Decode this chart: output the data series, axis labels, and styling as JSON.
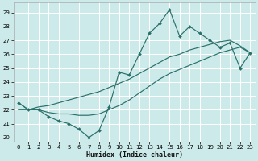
{
  "xlabel": "Humidex (Indice chaleur)",
  "bg_color": "#cdeaea",
  "line_color": "#2a706a",
  "grid_color": "#ffffff",
  "xlim": [
    -0.5,
    23.5
  ],
  "ylim": [
    19.7,
    29.7
  ],
  "xticks": [
    0,
    1,
    2,
    3,
    4,
    5,
    6,
    7,
    8,
    9,
    10,
    11,
    12,
    13,
    14,
    15,
    16,
    17,
    18,
    19,
    20,
    21,
    22,
    23
  ],
  "yticks": [
    20,
    21,
    22,
    23,
    24,
    25,
    26,
    27,
    28,
    29
  ],
  "curve_zigzag_x": [
    0,
    1,
    2,
    3,
    4,
    5,
    6,
    7,
    8,
    9,
    10,
    11,
    12,
    13,
    14,
    15,
    16,
    17,
    18,
    19,
    20,
    21,
    22,
    23
  ],
  "curve_zigzag_y": [
    22.5,
    22.0,
    22.0,
    21.5,
    21.2,
    21.0,
    20.6,
    20.0,
    20.5,
    22.2,
    24.7,
    24.5,
    26.0,
    27.5,
    28.2,
    29.2,
    27.3,
    28.0,
    27.5,
    27.0,
    26.5,
    26.8,
    25.0,
    26.1
  ],
  "curve_upper_x": [
    0,
    1,
    2,
    3,
    4,
    5,
    6,
    7,
    8,
    9,
    10,
    11,
    12,
    13,
    14,
    15,
    16,
    17,
    18,
    19,
    20,
    21,
    22,
    23
  ],
  "curve_upper_y": [
    22.5,
    22.0,
    22.2,
    22.3,
    22.5,
    22.7,
    22.9,
    23.1,
    23.3,
    23.6,
    23.9,
    24.2,
    24.6,
    25.0,
    25.4,
    25.8,
    26.0,
    26.3,
    26.5,
    26.7,
    26.9,
    27.0,
    26.6,
    26.1
  ],
  "curve_lower_x": [
    0,
    1,
    2,
    3,
    4,
    5,
    6,
    7,
    8,
    9,
    10,
    11,
    12,
    13,
    14,
    15,
    16,
    17,
    18,
    19,
    20,
    21,
    22,
    23
  ],
  "curve_lower_y": [
    22.0,
    22.0,
    22.0,
    21.8,
    21.7,
    21.7,
    21.6,
    21.6,
    21.7,
    22.0,
    22.3,
    22.7,
    23.2,
    23.7,
    24.2,
    24.6,
    24.9,
    25.2,
    25.5,
    25.8,
    26.1,
    26.3,
    26.5,
    26.1
  ]
}
